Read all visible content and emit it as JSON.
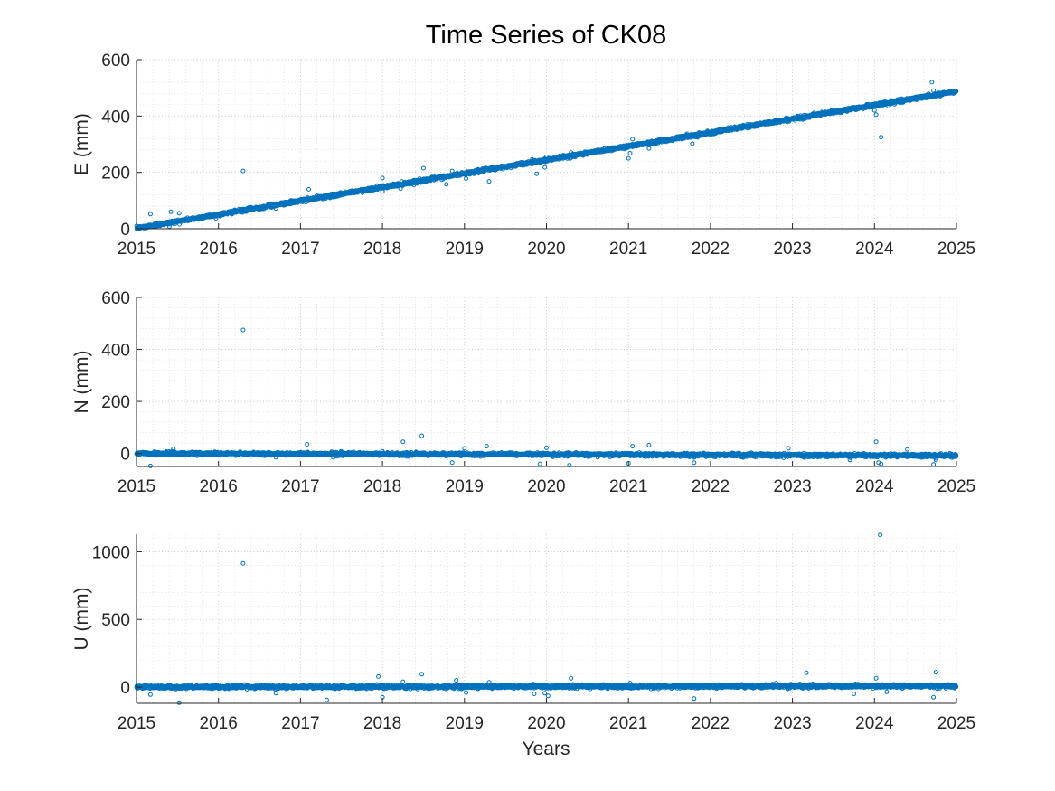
{
  "figure": {
    "title": "Time Series of CK08",
    "xlabel": "Years",
    "marker_color": "#0072BD"
  },
  "chart_data": [
    {
      "type": "scatter",
      "ylabel": "E (mm)",
      "xlim": [
        2015,
        2025
      ],
      "ylim": [
        0,
        600
      ],
      "xticks": [
        2015,
        2016,
        2017,
        2018,
        2019,
        2020,
        2021,
        2022,
        2023,
        2024,
        2025
      ],
      "yticks": [
        0,
        200,
        400,
        600
      ],
      "grid": true,
      "trend": {
        "start": [
          2015.0,
          2
        ],
        "end": [
          2025.0,
          487
        ],
        "noise_mm": 3,
        "step_years": 0.0027,
        "description_visible": false
      },
      "outliers": [
        [
          2015.17,
          52
        ],
        [
          2015.42,
          60
        ],
        [
          2015.52,
          55
        ],
        [
          2015.4,
          8
        ],
        [
          2016.3,
          205
        ],
        [
          2016.7,
          72
        ],
        [
          2017.1,
          140
        ],
        [
          2017.45,
          115
        ],
        [
          2018.0,
          180
        ],
        [
          2018.0,
          132
        ],
        [
          2018.22,
          142
        ],
        [
          2018.5,
          215
        ],
        [
          2018.78,
          158
        ],
        [
          2018.85,
          205
        ],
        [
          2019.02,
          178
        ],
        [
          2019.3,
          168
        ],
        [
          2019.88,
          195
        ],
        [
          2019.98,
          218
        ],
        [
          2020.0,
          255
        ],
        [
          2020.3,
          270
        ],
        [
          2021.0,
          250
        ],
        [
          2021.02,
          268
        ],
        [
          2021.05,
          318
        ],
        [
          2021.25,
          285
        ],
        [
          2021.78,
          302
        ],
        [
          2024.0,
          420
        ],
        [
          2024.02,
          405
        ],
        [
          2024.08,
          325
        ],
        [
          2024.17,
          435
        ],
        [
          2024.7,
          520
        ],
        [
          2024.72,
          490
        ]
      ]
    },
    {
      "type": "scatter",
      "ylabel": "N (mm)",
      "xlim": [
        2015,
        2025
      ],
      "ylim": [
        -50,
        600
      ],
      "xticks": [
        2015,
        2016,
        2017,
        2018,
        2019,
        2020,
        2021,
        2022,
        2023,
        2024,
        2025
      ],
      "yticks": [
        0,
        200,
        400,
        600
      ],
      "grid": true,
      "trend": {
        "start": [
          2015.0,
          0
        ],
        "end": [
          2025.0,
          -8
        ],
        "noise_mm": 3,
        "step_years": 0.0027
      },
      "outliers": [
        [
          2015.17,
          -48
        ],
        [
          2015.45,
          18
        ],
        [
          2016.3,
          475
        ],
        [
          2016.7,
          -15
        ],
        [
          2017.08,
          35
        ],
        [
          2017.4,
          -15
        ],
        [
          2018.0,
          8
        ],
        [
          2018.25,
          45
        ],
        [
          2018.48,
          68
        ],
        [
          2018.85,
          -35
        ],
        [
          2019.0,
          20
        ],
        [
          2019.27,
          28
        ],
        [
          2019.92,
          -40
        ],
        [
          2020.0,
          22
        ],
        [
          2020.28,
          -45
        ],
        [
          2021.0,
          -38
        ],
        [
          2021.05,
          28
        ],
        [
          2021.25,
          32
        ],
        [
          2021.8,
          -35
        ],
        [
          2022.95,
          20
        ],
        [
          2023.7,
          -25
        ],
        [
          2024.02,
          45
        ],
        [
          2024.05,
          -35
        ],
        [
          2024.08,
          -40
        ],
        [
          2024.4,
          15
        ],
        [
          2024.72,
          -42
        ],
        [
          2024.75,
          -25
        ]
      ]
    },
    {
      "type": "scatter",
      "ylabel": "U (mm)",
      "xlim": [
        2015,
        2025
      ],
      "ylim": [
        -120,
        1130
      ],
      "xticks": [
        2015,
        2016,
        2017,
        2018,
        2019,
        2020,
        2021,
        2022,
        2023,
        2024,
        2025
      ],
      "yticks": [
        0,
        500,
        1000
      ],
      "grid": true,
      "trend": {
        "start": [
          2015.0,
          0
        ],
        "end": [
          2025.0,
          8
        ],
        "noise_mm": 6,
        "step_years": 0.0027
      },
      "outliers": [
        [
          2015.17,
          -55
        ],
        [
          2015.52,
          -115
        ],
        [
          2016.3,
          915
        ],
        [
          2016.7,
          -45
        ],
        [
          2017.32,
          -95
        ],
        [
          2017.95,
          78
        ],
        [
          2018.0,
          -75
        ],
        [
          2018.25,
          40
        ],
        [
          2018.48,
          95
        ],
        [
          2018.9,
          50
        ],
        [
          2019.02,
          -40
        ],
        [
          2019.3,
          35
        ],
        [
          2019.85,
          -50
        ],
        [
          2019.98,
          -45
        ],
        [
          2020.02,
          -65
        ],
        [
          2020.3,
          65
        ],
        [
          2021.02,
          30
        ],
        [
          2021.8,
          -85
        ],
        [
          2022.8,
          30
        ],
        [
          2023.17,
          105
        ],
        [
          2023.75,
          -50
        ],
        [
          2024.02,
          65
        ],
        [
          2024.07,
          1125
        ],
        [
          2024.15,
          -35
        ],
        [
          2024.72,
          -75
        ],
        [
          2024.75,
          110
        ]
      ]
    }
  ]
}
